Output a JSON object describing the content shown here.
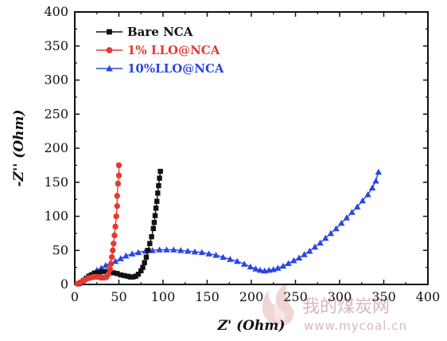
{
  "chart_data": {
    "type": "scatter",
    "xlabel": "Z' (Ohm)",
    "ylabel": "-Z'' (Ohm)",
    "xlim": [
      0,
      400
    ],
    "ylim": [
      0,
      400
    ],
    "xticks": [
      0,
      50,
      100,
      150,
      200,
      250,
      300,
      350,
      400
    ],
    "yticks": [
      0,
      50,
      100,
      150,
      200,
      250,
      300,
      350,
      400
    ],
    "legend": "top-left",
    "series": [
      {
        "name": "Bare NCA",
        "color": "#111111",
        "marker": "square",
        "points": [
          [
            4,
            1
          ],
          [
            7,
            3
          ],
          [
            10,
            6
          ],
          [
            13,
            9
          ],
          [
            16,
            12
          ],
          [
            19,
            14
          ],
          [
            22,
            16
          ],
          [
            25,
            17
          ],
          [
            28,
            18
          ],
          [
            32,
            19
          ],
          [
            36,
            19
          ],
          [
            40,
            18
          ],
          [
            44,
            17
          ],
          [
            48,
            16
          ],
          [
            52,
            14
          ],
          [
            56,
            13
          ],
          [
            60,
            12
          ],
          [
            63,
            11
          ],
          [
            66,
            11
          ],
          [
            69,
            12
          ],
          [
            72,
            15
          ],
          [
            75,
            20
          ],
          [
            77,
            25
          ],
          [
            79,
            32
          ],
          [
            81,
            40
          ],
          [
            83,
            50
          ],
          [
            85,
            60
          ],
          [
            87,
            70
          ],
          [
            89,
            82
          ],
          [
            90,
            91
          ],
          [
            91,
            101
          ],
          [
            92,
            112
          ],
          [
            93,
            122
          ],
          [
            94,
            134
          ],
          [
            95,
            145
          ],
          [
            96,
            156
          ],
          [
            97,
            166
          ]
        ]
      },
      {
        "name": "1% LLO@NCA",
        "color": "#e8382f",
        "marker": "circle",
        "points": [
          [
            3,
            1
          ],
          [
            6,
            3
          ],
          [
            9,
            5
          ],
          [
            12,
            7
          ],
          [
            15,
            9
          ],
          [
            18,
            10
          ],
          [
            21,
            11
          ],
          [
            24,
            11
          ],
          [
            27,
            11
          ],
          [
            30,
            10
          ],
          [
            33,
            10
          ],
          [
            36,
            11
          ],
          [
            38,
            15
          ],
          [
            40,
            22
          ],
          [
            41,
            30
          ],
          [
            42,
            40
          ],
          [
            43,
            50
          ],
          [
            44,
            60
          ],
          [
            45,
            72
          ],
          [
            46,
            85
          ],
          [
            47,
            100
          ],
          [
            48,
            115
          ],
          [
            48,
            130
          ],
          [
            49,
            148
          ],
          [
            50,
            160
          ],
          [
            50,
            175
          ]
        ]
      },
      {
        "name": "10%LLO@NCA",
        "color": "#2b46e3",
        "marker": "triangle",
        "points": [
          [
            5,
            2
          ],
          [
            8,
            5
          ],
          [
            11,
            8
          ],
          [
            14,
            11
          ],
          [
            17,
            14
          ],
          [
            21,
            17
          ],
          [
            25,
            21
          ],
          [
            30,
            24
          ],
          [
            35,
            28
          ],
          [
            40,
            31
          ],
          [
            46,
            34
          ],
          [
            52,
            38
          ],
          [
            58,
            42
          ],
          [
            65,
            45
          ],
          [
            72,
            47
          ],
          [
            80,
            49
          ],
          [
            88,
            50
          ],
          [
            96,
            51
          ],
          [
            104,
            51
          ],
          [
            112,
            51
          ],
          [
            120,
            50
          ],
          [
            128,
            49
          ],
          [
            136,
            48
          ],
          [
            144,
            47
          ],
          [
            152,
            45
          ],
          [
            160,
            43
          ],
          [
            168,
            40
          ],
          [
            176,
            37
          ],
          [
            184,
            34
          ],
          [
            192,
            30
          ],
          [
            199,
            26
          ],
          [
            205,
            23
          ],
          [
            210,
            21
          ],
          [
            215,
            20
          ],
          [
            220,
            21
          ],
          [
            225,
            22
          ],
          [
            230,
            24
          ],
          [
            236,
            27
          ],
          [
            242,
            31
          ],
          [
            248,
            35
          ],
          [
            254,
            39
          ],
          [
            260,
            44
          ],
          [
            266,
            49
          ],
          [
            272,
            55
          ],
          [
            278,
            61
          ],
          [
            284,
            68
          ],
          [
            290,
            75
          ],
          [
            296,
            82
          ],
          [
            302,
            90
          ],
          [
            308,
            98
          ],
          [
            314,
            106
          ],
          [
            320,
            114
          ],
          [
            326,
            123
          ],
          [
            332,
            132
          ],
          [
            337,
            142
          ],
          [
            341,
            152
          ],
          [
            344,
            165
          ]
        ]
      }
    ]
  },
  "watermark": {
    "chinese_text": "我的煤炭网",
    "url": "www.mycoal.cn",
    "color": "#d9b7b7"
  }
}
